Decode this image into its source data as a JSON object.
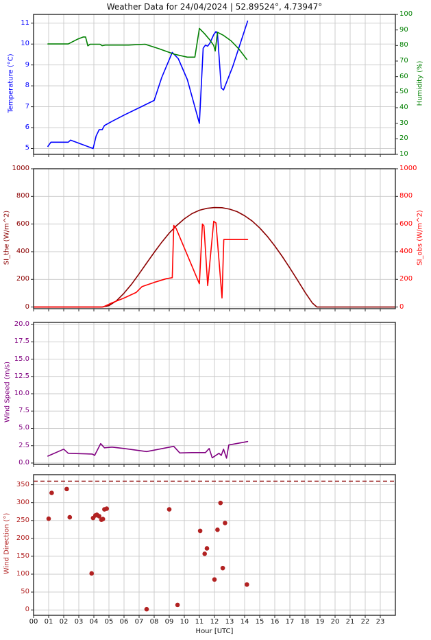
{
  "title": "Weather Data for 24/04/2024 | 52.89524°, 4.73947°",
  "xlabel": "Hour [UTC]",
  "x_ticks": {
    "values": [
      0,
      1,
      2,
      3,
      4,
      5,
      6,
      7,
      8,
      9,
      10,
      11,
      12,
      13,
      14,
      15,
      16,
      17,
      18,
      19,
      20,
      21,
      22,
      23
    ],
    "labels": [
      "00",
      "01",
      "02",
      "03",
      "04",
      "05",
      "06",
      "07",
      "08",
      "09",
      "10",
      "11",
      "12",
      "13",
      "14",
      "15",
      "16",
      "17",
      "18",
      "19",
      "20",
      "21",
      "22",
      "23"
    ]
  },
  "chart_data": [
    {
      "type": "line",
      "xlim": [
        0,
        24
      ],
      "grid": true,
      "left_axis": {
        "label": "Temperature (°C)",
        "color": "#0000FF",
        "range": [
          4.72,
          11.42
        ],
        "ticks": [
          5,
          6,
          7,
          8,
          9,
          10,
          11
        ],
        "tick_labels": [
          "5",
          "6",
          "7",
          "8",
          "9",
          "10",
          "11"
        ]
      },
      "right_axis": {
        "label": "Humidity (%)",
        "color": "#008000",
        "range": [
          10,
          100
        ],
        "ticks": [
          10,
          20,
          30,
          40,
          50,
          60,
          70,
          80,
          90,
          100
        ],
        "tick_labels": [
          "10",
          "20",
          "30",
          "40",
          "50",
          "60",
          "70",
          "80",
          "90",
          "100"
        ]
      },
      "series": [
        {
          "name": "temperature",
          "axis": "left",
          "type": "line",
          "color": "#0000FF",
          "x": [
            0.95,
            1.15,
            2.3,
            2.45,
            3.2,
            3.95,
            4.15,
            4.35,
            4.55,
            4.7,
            5.2,
            6.0,
            7.0,
            8.0,
            8.5,
            9.2,
            9.6,
            10.2,
            11.0,
            11.25,
            11.4,
            11.55,
            11.7,
            11.95,
            12.1,
            12.2,
            12.45,
            12.6,
            13.2,
            14.2
          ],
          "y": [
            5.1,
            5.3,
            5.3,
            5.4,
            5.2,
            5.0,
            5.6,
            5.9,
            5.9,
            6.1,
            6.3,
            6.6,
            6.95,
            7.3,
            8.4,
            9.6,
            9.3,
            8.3,
            6.2,
            9.8,
            9.95,
            9.9,
            10.05,
            10.45,
            10.6,
            10.5,
            7.9,
            7.8,
            8.9,
            11.1
          ]
        },
        {
          "name": "humidity",
          "axis": "right",
          "type": "line",
          "color": "#008000",
          "x": [
            0.95,
            1.6,
            2.3,
            2.9,
            3.3,
            3.45,
            3.6,
            3.75,
            4.4,
            4.55,
            4.75,
            5.5,
            6.3,
            7.4,
            8.3,
            9.3,
            10.2,
            10.7,
            11.0,
            11.35,
            11.7,
            11.95,
            12.05,
            12.2,
            12.6,
            13.1,
            13.6,
            14.15
          ],
          "y": [
            81,
            81,
            81,
            84,
            85.5,
            85.5,
            79.8,
            80.8,
            80.8,
            79.9,
            80.3,
            80.3,
            80.3,
            80.8,
            78,
            74.5,
            72.5,
            72.5,
            91,
            87.5,
            83.5,
            80,
            76.5,
            88.5,
            86.5,
            83,
            78,
            71
          ]
        }
      ]
    },
    {
      "type": "line",
      "xlim": [
        0,
        24
      ],
      "grid": true,
      "left_axis": {
        "label": "SI_the (W/m^2)",
        "color": "#8B0000",
        "range": [
          -12,
          1000
        ],
        "ticks": [
          0,
          200,
          400,
          600,
          800,
          1000
        ],
        "tick_labels": [
          "0",
          "200",
          "400",
          "600",
          "800",
          "1000"
        ]
      },
      "right_axis": {
        "label": "SI_obs (W/m^2)",
        "color": "#FF0000",
        "range": [
          -12,
          1000
        ],
        "ticks": [
          0,
          200,
          400,
          600,
          800,
          1000
        ],
        "tick_labels": [
          "0",
          "200",
          "400",
          "600",
          "800",
          "1000"
        ]
      },
      "series": [
        {
          "name": "si_the",
          "axis": "left",
          "type": "line",
          "color": "#8B0000",
          "x": [
            0,
            4.5,
            5,
            5.5,
            6,
            6.5,
            7,
            7.5,
            8,
            8.5,
            9,
            9.5,
            10,
            10.5,
            11,
            11.5,
            12,
            12.5,
            13,
            13.5,
            14,
            14.5,
            15,
            15.5,
            16,
            16.5,
            17,
            17.5,
            18,
            18.5,
            18.8,
            24
          ],
          "y": [
            0,
            0,
            10,
            45,
            100,
            165,
            240,
            318,
            395,
            468,
            535,
            590,
            638,
            675,
            700,
            714,
            719,
            718,
            708,
            690,
            660,
            622,
            572,
            512,
            442,
            365,
            282,
            196,
            108,
            28,
            0,
            0
          ]
        },
        {
          "name": "si_obs",
          "axis": "right",
          "type": "line",
          "color": "#FF0000",
          "x": [
            0,
            4.6,
            5.2,
            6,
            6.8,
            7.2,
            8,
            8.8,
            9.2,
            9.3,
            9.45,
            11.0,
            11.2,
            11.3,
            11.55,
            11.95,
            12.1,
            12.5,
            12.62,
            14.2
          ],
          "y": [
            0,
            0,
            30,
            65,
            105,
            148,
            178,
            205,
            212,
            590,
            570,
            168,
            600,
            588,
            155,
            620,
            608,
            65,
            488,
            488
          ]
        }
      ]
    },
    {
      "type": "line",
      "xlim": [
        0,
        24
      ],
      "grid": true,
      "left_axis": {
        "label": "Wind Speed (m/s)",
        "color": "#800080",
        "range": [
          -0.2,
          20.3
        ],
        "ticks": [
          0,
          2.5,
          5,
          7.5,
          10,
          12.5,
          15,
          17.5,
          20
        ],
        "tick_labels": [
          "0.0",
          "2.5",
          "5.0",
          "7.5",
          "10.0",
          "12.5",
          "15.0",
          "17.5",
          "20.0"
        ]
      },
      "series": [
        {
          "name": "wind_speed",
          "axis": "left",
          "type": "line",
          "color": "#800080",
          "x": [
            0.95,
            2.0,
            2.3,
            3.0,
            3.9,
            4.05,
            4.45,
            4.7,
            5.2,
            6.0,
            7.5,
            9.3,
            9.7,
            10.5,
            11.4,
            11.65,
            11.85,
            12.3,
            12.45,
            12.6,
            12.8,
            12.95,
            14.2
          ],
          "y": [
            1.0,
            2.0,
            1.4,
            1.35,
            1.3,
            1.1,
            2.8,
            2.2,
            2.3,
            2.1,
            1.65,
            2.4,
            1.45,
            1.5,
            1.5,
            2.1,
            0.75,
            1.4,
            1.1,
            2.0,
            0.7,
            2.6,
            3.1
          ]
        }
      ]
    },
    {
      "type": "scatter",
      "xlim": [
        0,
        24
      ],
      "grid": true,
      "left_axis": {
        "label": "Wind Direction (°)",
        "color": "#B22222",
        "range": [
          -15,
          378
        ],
        "ticks": [
          0,
          50,
          100,
          150,
          200,
          250,
          300,
          350
        ],
        "tick_labels": [
          "0",
          "50",
          "100",
          "150",
          "200",
          "250",
          "300",
          "350"
        ]
      },
      "series": [
        {
          "name": "wind_direction",
          "axis": "left",
          "type": "scatter",
          "color": "#B22222",
          "x": [
            1.0,
            1.2,
            2.2,
            2.4,
            3.85,
            3.95,
            4.1,
            4.2,
            4.35,
            4.5,
            4.6,
            4.7,
            4.85,
            7.5,
            9.0,
            9.55,
            11.05,
            11.35,
            11.5,
            12.0,
            12.2,
            12.4,
            12.55,
            12.7,
            14.15
          ],
          "y": [
            255,
            327,
            338,
            259,
            102,
            257,
            264,
            266,
            262,
            252,
            254,
            281,
            283,
            2,
            281,
            14,
            221,
            157,
            172,
            85,
            224,
            299,
            117,
            243,
            71
          ]
        }
      ],
      "hline": {
        "y": 360,
        "color": "#8B0000",
        "dash": "6 4"
      }
    }
  ],
  "style": {
    "grid_color": "#c9c9c9",
    "spine_color": "#2a2a2a",
    "background": "#ffffff"
  }
}
